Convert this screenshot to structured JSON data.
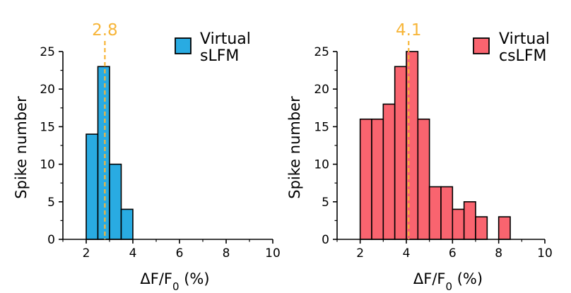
{
  "chart_data": [
    {
      "type": "bar",
      "subtype": "histogram",
      "bins": [
        {
          "x0": 2.0,
          "x1": 2.5,
          "count": 14
        },
        {
          "x0": 2.5,
          "x1": 3.0,
          "count": 23
        },
        {
          "x0": 3.0,
          "x1": 3.5,
          "count": 10
        },
        {
          "x0": 3.5,
          "x1": 4.0,
          "count": 4
        }
      ],
      "color": "#29abe2",
      "edge_color": "#000000",
      "mean": 2.8,
      "mean_label": "2.8",
      "mean_color": "#f7b538",
      "legend": [
        "Virtual",
        "sLFM"
      ],
      "legend_position": "top-right",
      "xlabel_parts": [
        "ΔF/F",
        "0",
        " (%)"
      ],
      "ylabel": "Spike number",
      "xlim": [
        1,
        10
      ],
      "ylim": [
        0,
        25
      ],
      "xticks": [
        2,
        4,
        6,
        8,
        10
      ],
      "xtick_labels": [
        "2",
        "4",
        "6",
        "8",
        "10"
      ],
      "yticks": [
        0,
        5,
        10,
        15,
        20,
        25
      ],
      "ytick_labels": [
        "0",
        "5",
        "10",
        "15",
        "20",
        "25"
      ]
    },
    {
      "type": "bar",
      "subtype": "histogram",
      "bins": [
        {
          "x0": 2.0,
          "x1": 2.5,
          "count": 16
        },
        {
          "x0": 2.5,
          "x1": 3.0,
          "count": 16
        },
        {
          "x0": 3.0,
          "x1": 3.5,
          "count": 18
        },
        {
          "x0": 3.5,
          "x1": 4.0,
          "count": 23
        },
        {
          "x0": 4.0,
          "x1": 4.5,
          "count": 25
        },
        {
          "x0": 4.5,
          "x1": 5.0,
          "count": 16
        },
        {
          "x0": 5.0,
          "x1": 5.5,
          "count": 7
        },
        {
          "x0": 5.5,
          "x1": 6.0,
          "count": 7
        },
        {
          "x0": 6.0,
          "x1": 6.5,
          "count": 4
        },
        {
          "x0": 6.5,
          "x1": 7.0,
          "count": 5
        },
        {
          "x0": 7.0,
          "x1": 7.5,
          "count": 3
        },
        {
          "x0": 8.0,
          "x1": 8.5,
          "count": 3
        }
      ],
      "color": "#f9646f",
      "edge_color": "#000000",
      "mean": 4.1,
      "mean_label": "4.1",
      "mean_color": "#f7b538",
      "legend": [
        "Virtual",
        "csLFM"
      ],
      "legend_position": "top-right",
      "xlabel_parts": [
        "ΔF/F",
        "0",
        " (%)"
      ],
      "ylabel": "Spike number",
      "xlim": [
        1,
        10
      ],
      "ylim": [
        0,
        25
      ],
      "xticks": [
        2,
        4,
        6,
        8,
        10
      ],
      "xtick_labels": [
        "2",
        "4",
        "6",
        "8",
        "10"
      ],
      "yticks": [
        0,
        5,
        10,
        15,
        20,
        25
      ],
      "ytick_labels": [
        "0",
        "5",
        "10",
        "15",
        "20",
        "25"
      ]
    }
  ]
}
